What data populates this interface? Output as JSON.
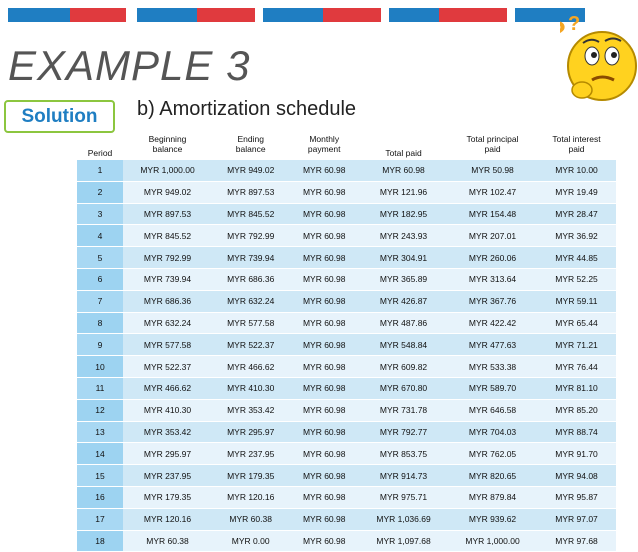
{
  "slide": {
    "title": "EXAMPLE 3",
    "solution_label": "Solution",
    "subtitle": "b)   Amortization schedule",
    "question_marks": "?",
    "colors": {
      "blue": "#1f7ec2",
      "red": "#e03a3e",
      "orange": "#f5a623",
      "green": "#8cc63f",
      "title_gray": "#555555"
    }
  },
  "table": {
    "headers": [
      "Period",
      "Beginning\nbalance",
      "Ending\nbalance",
      "Monthly\npayment",
      "Total paid",
      "Total principal\npaid",
      "Total interest\npaid"
    ],
    "rows": [
      [
        "1",
        "MYR 1,000.00",
        "MYR 949.02",
        "MYR 60.98",
        "MYR 60.98",
        "MYR 50.98",
        "MYR 10.00"
      ],
      [
        "2",
        "MYR 949.02",
        "MYR 897.53",
        "MYR 60.98",
        "MYR 121.96",
        "MYR 102.47",
        "MYR 19.49"
      ],
      [
        "3",
        "MYR 897.53",
        "MYR 845.52",
        "MYR 60.98",
        "MYR 182.95",
        "MYR 154.48",
        "MYR 28.47"
      ],
      [
        "4",
        "MYR 845.52",
        "MYR 792.99",
        "MYR 60.98",
        "MYR 243.93",
        "MYR 207.01",
        "MYR 36.92"
      ],
      [
        "5",
        "MYR 792.99",
        "MYR 739.94",
        "MYR 60.98",
        "MYR 304.91",
        "MYR 260.06",
        "MYR 44.85"
      ],
      [
        "6",
        "MYR 739.94",
        "MYR 686.36",
        "MYR 60.98",
        "MYR 365.89",
        "MYR 313.64",
        "MYR 52.25"
      ],
      [
        "7",
        "MYR 686.36",
        "MYR 632.24",
        "MYR 60.98",
        "MYR 426.87",
        "MYR 367.76",
        "MYR 59.11"
      ],
      [
        "8",
        "MYR 632.24",
        "MYR 577.58",
        "MYR 60.98",
        "MYR 487.86",
        "MYR 422.42",
        "MYR 65.44"
      ],
      [
        "9",
        "MYR 577.58",
        "MYR 522.37",
        "MYR 60.98",
        "MYR 548.84",
        "MYR 477.63",
        "MYR 71.21"
      ],
      [
        "10",
        "MYR 522.37",
        "MYR 466.62",
        "MYR 60.98",
        "MYR 609.82",
        "MYR 533.38",
        "MYR 76.44"
      ],
      [
        "11",
        "MYR 466.62",
        "MYR 410.30",
        "MYR 60.98",
        "MYR 670.80",
        "MYR 589.70",
        "MYR 81.10"
      ],
      [
        "12",
        "MYR 410.30",
        "MYR 353.42",
        "MYR 60.98",
        "MYR 731.78",
        "MYR 646.58",
        "MYR 85.20"
      ],
      [
        "13",
        "MYR 353.42",
        "MYR 295.97",
        "MYR 60.98",
        "MYR 792.77",
        "MYR 704.03",
        "MYR 88.74"
      ],
      [
        "14",
        "MYR 295.97",
        "MYR 237.95",
        "MYR 60.98",
        "MYR 853.75",
        "MYR 762.05",
        "MYR 91.70"
      ],
      [
        "15",
        "MYR 237.95",
        "MYR 179.35",
        "MYR 60.98",
        "MYR 914.73",
        "MYR 820.65",
        "MYR 94.08"
      ],
      [
        "16",
        "MYR 179.35",
        "MYR 120.16",
        "MYR 60.98",
        "MYR 975.71",
        "MYR 879.84",
        "MYR 95.87"
      ],
      [
        "17",
        "MYR 120.16",
        "MYR 60.38",
        "MYR 60.98",
        "MYR 1,036.69",
        "MYR 939.62",
        "MYR 97.07"
      ],
      [
        "18",
        "MYR 60.38",
        "MYR 0.00",
        "MYR 60.98",
        "MYR 1,097.68",
        "MYR 1,000.00",
        "MYR 97.68"
      ]
    ]
  }
}
